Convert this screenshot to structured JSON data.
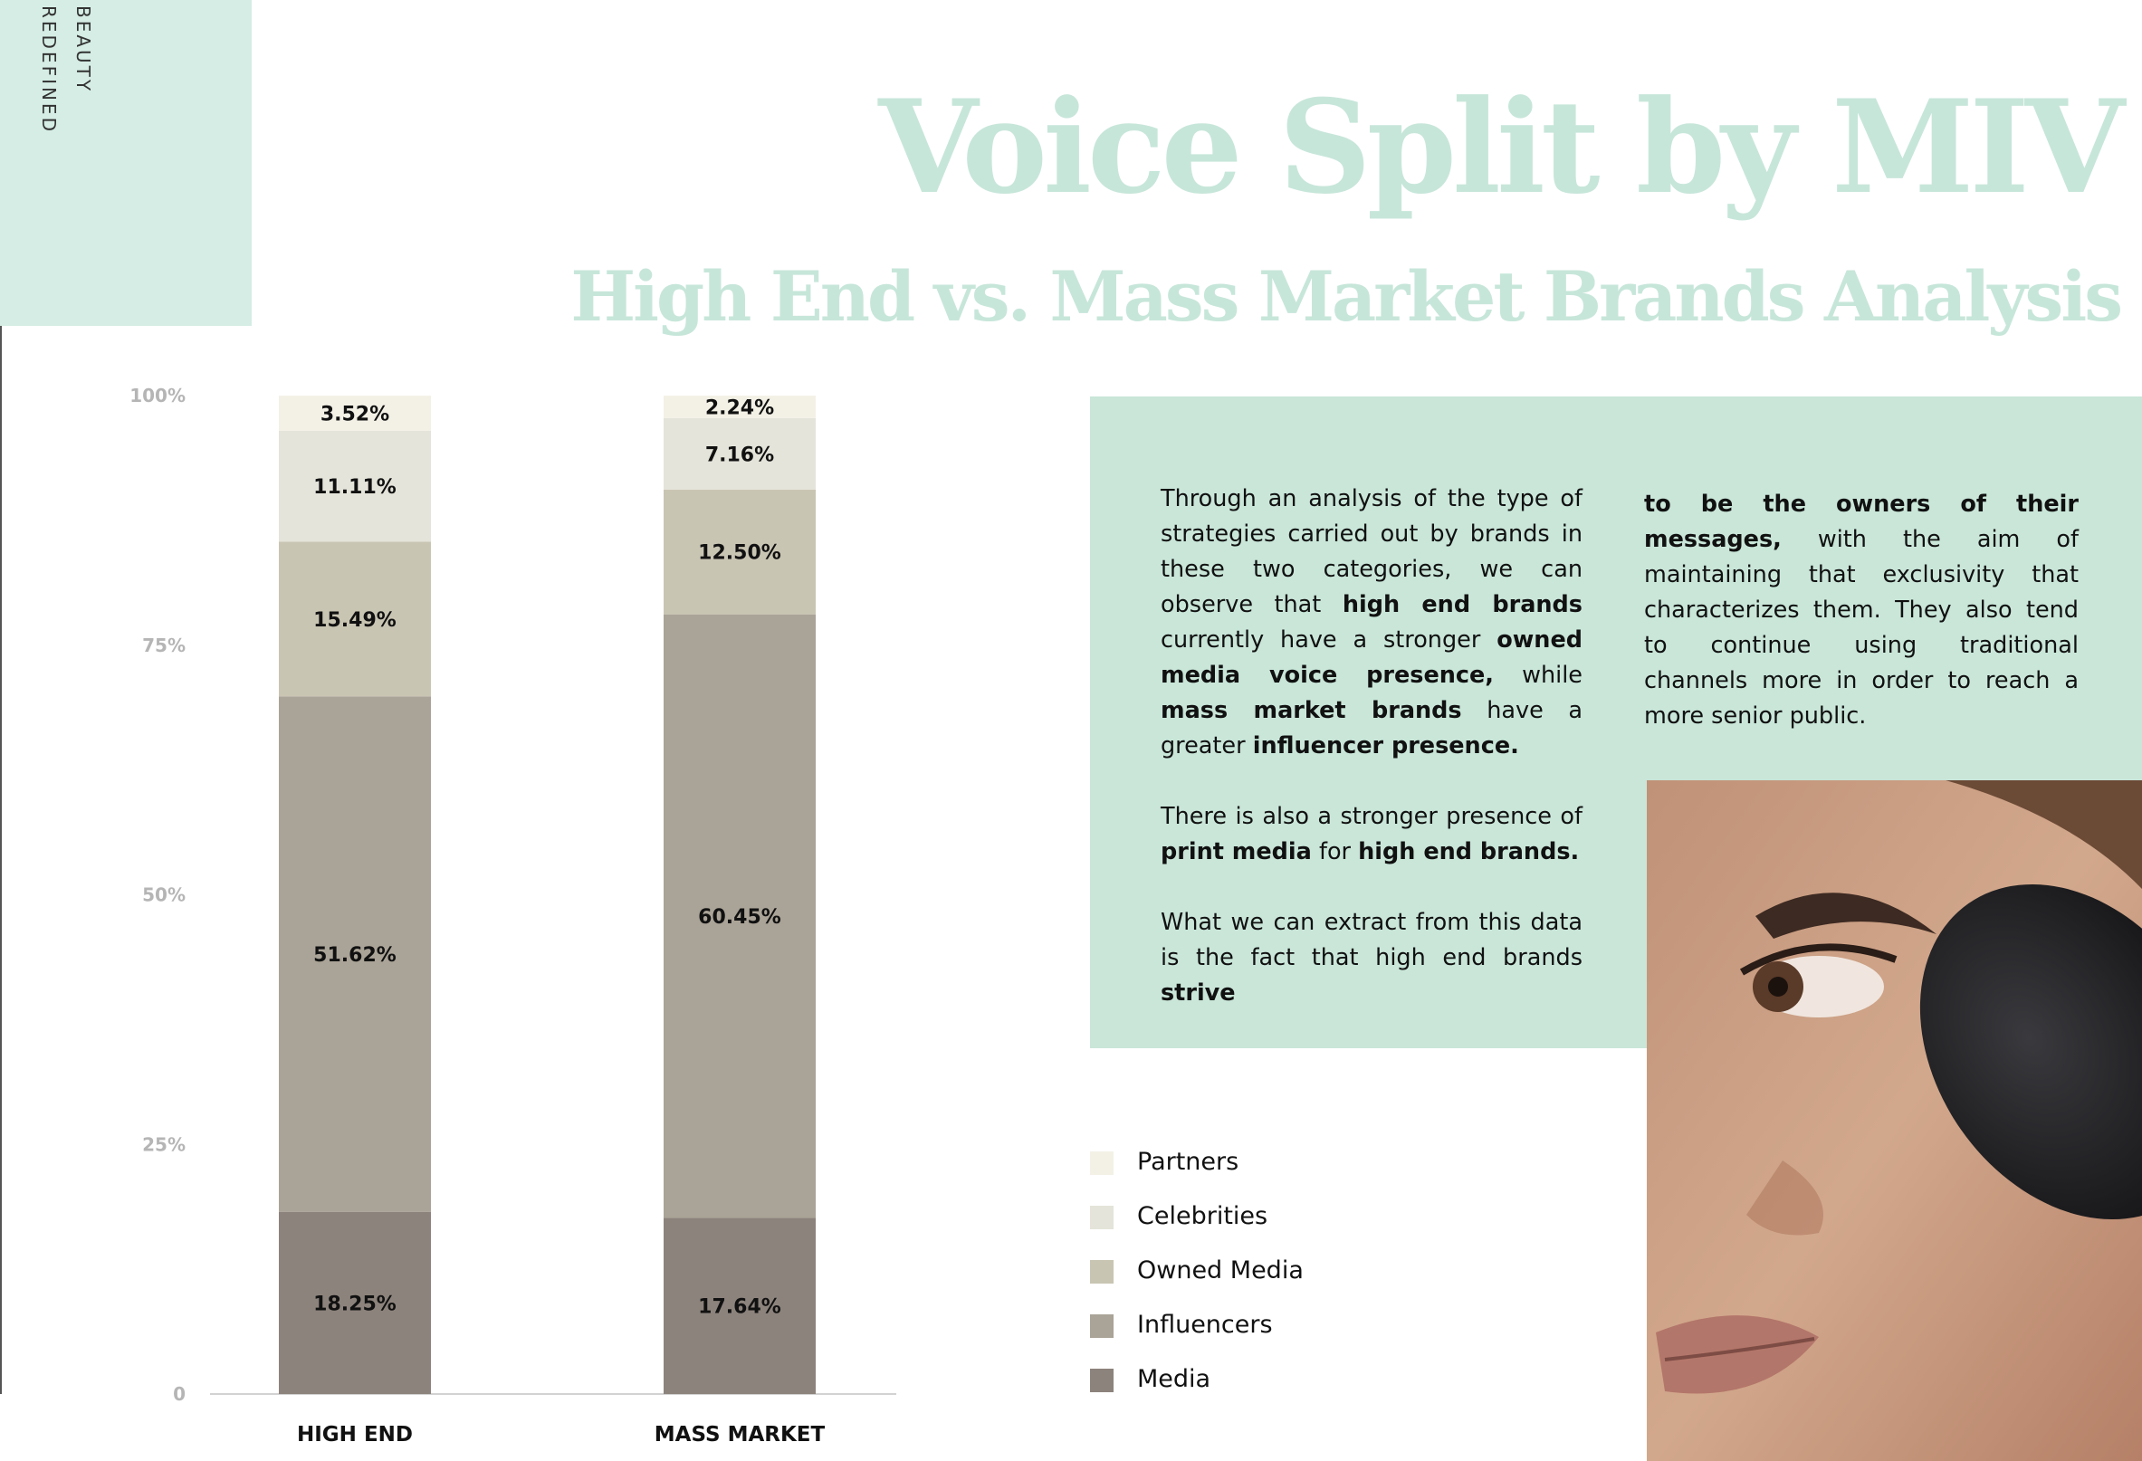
{
  "brand": {
    "line1": "BEAUTY",
    "line2": "REDEFINED"
  },
  "header": {
    "title": "Voice Split by MIV",
    "subtitle": "High End vs. Mass Market Brands Analysis"
  },
  "colors": {
    "title": "#c7e6da",
    "panel": "#c9e6d9",
    "side_panel": "#d5ede4",
    "partners": "#f3f1e6",
    "celebrities": "#e5e4da",
    "owned_media": "#c9c5b3",
    "influencers": "#aaa397",
    "media": "#8c837c"
  },
  "body_text": {
    "left": [
      [
        {
          "t": "Through an analysis of the type of strategies carried out by brands in these two categories, we can observe that "
        },
        {
          "t": "high end brands",
          "b": true
        },
        {
          "t": " currently have a stronger "
        },
        {
          "t": "owned media voice presence,",
          "b": true
        },
        {
          "t": " while "
        },
        {
          "t": "mass market brands",
          "b": true
        },
        {
          "t": " have a greater "
        },
        {
          "t": "influencer presence.",
          "b": true
        }
      ],
      [
        {
          "t": "There is also a stronger presence of "
        },
        {
          "t": "print media",
          "b": true
        },
        {
          "t": " for "
        },
        {
          "t": "high end brands.",
          "b": true
        }
      ],
      [
        {
          "t": "What we can extract from this data is the fact that high end brands "
        },
        {
          "t": "strive",
          "b": true
        }
      ]
    ],
    "right": [
      [
        {
          "t": "to be the owners of their messages,",
          "b": true
        },
        {
          "t": " with the aim of maintaining that exclusivity that characterizes them. They also tend to continue using traditional channels more in order to reach a more senior public."
        }
      ]
    ]
  },
  "chart_data": {
    "type": "bar",
    "stacked": true,
    "categories": [
      "HIGH END",
      "MASS MARKET"
    ],
    "series": [
      {
        "name": "Media",
        "values": [
          18.25,
          17.64
        ],
        "labels": [
          "18.25%",
          "17.64%"
        ],
        "color": "#8c837c"
      },
      {
        "name": "Influencers",
        "values": [
          51.62,
          60.45
        ],
        "labels": [
          "51.62%",
          "60.45%"
        ],
        "color": "#aaa397"
      },
      {
        "name": "Owned Media",
        "values": [
          15.49,
          12.5
        ],
        "labels": [
          "15.49%",
          "12.50%"
        ],
        "color": "#c9c5b3"
      },
      {
        "name": "Celebrities",
        "values": [
          11.11,
          7.16
        ],
        "labels": [
          "11.11%",
          "7.16%"
        ],
        "color": "#e5e4da"
      },
      {
        "name": "Partners",
        "values": [
          3.52,
          2.24
        ],
        "labels": [
          "3.52%",
          "2.24%"
        ],
        "color": "#f3f1e6"
      }
    ],
    "y_ticks": [
      {
        "value": 0,
        "label": "0"
      },
      {
        "value": 25,
        "label": "25%"
      },
      {
        "value": 50,
        "label": "50%"
      },
      {
        "value": 75,
        "label": "75%"
      },
      {
        "value": 100,
        "label": "100%"
      }
    ],
    "ylim": [
      0,
      100
    ],
    "grid": false,
    "legend_position": "bottom-right",
    "legend_order": [
      "Partners",
      "Celebrities",
      "Owned Media",
      "Influencers",
      "Media"
    ]
  }
}
